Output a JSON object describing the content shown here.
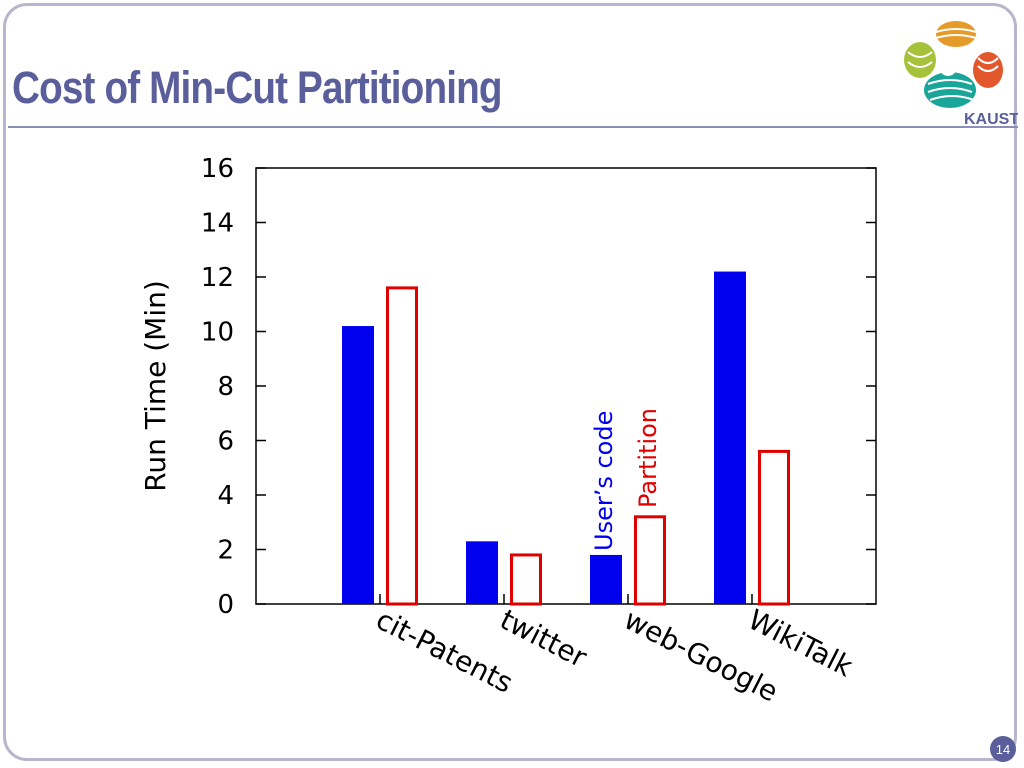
{
  "slide": {
    "title": "Cost of Min-Cut Partitioning",
    "logo_text": "KAUST",
    "page_number": "14"
  },
  "chart_data": {
    "type": "bar",
    "title": "",
    "xlabel": "",
    "ylabel": "Run Time (Min)",
    "categories": [
      "cit-Patents",
      "twitter",
      "web-Google",
      "WikiTalk"
    ],
    "series": [
      {
        "name": "User’s code",
        "values": [
          10.2,
          2.3,
          1.8,
          12.2
        ],
        "color": "#0000ee",
        "style": "filled"
      },
      {
        "name": "Partition",
        "values": [
          11.6,
          1.8,
          3.2,
          5.6
        ],
        "color": "#e00000",
        "style": "outline"
      }
    ],
    "ylim": [
      0,
      16
    ],
    "yticks": [
      "0",
      "2",
      "4",
      "6",
      "8",
      "10",
      "12",
      "14",
      "16"
    ],
    "grid": false,
    "legend": "labels placed vertically beside the web-Google bars"
  },
  "colors": {
    "title": "#5a5f9c",
    "frame": "#b8b6cf",
    "logo_orange": "#e69a2a",
    "logo_green": "#a7c23a",
    "logo_teal": "#1aa59a",
    "logo_red": "#e2572b"
  }
}
